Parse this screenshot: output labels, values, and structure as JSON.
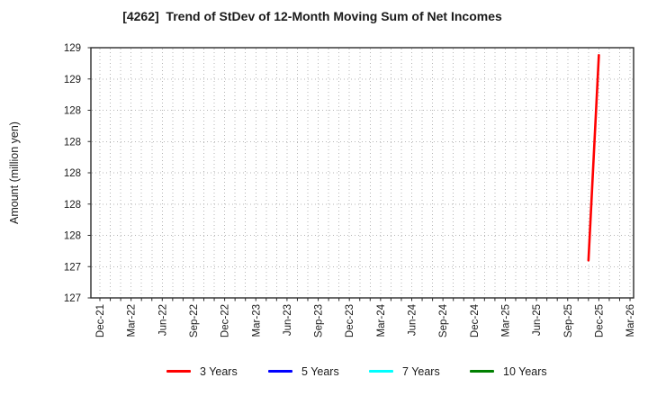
{
  "chart_data": {
    "type": "line",
    "title": "[4262]  Trend of StDev of 12-Month Moving Sum of Net Incomes",
    "ylabel": "Amount (million yen)",
    "xlabel": "",
    "ylim": [
      127.0,
      129.0
    ],
    "grid": true,
    "legend_position": "bottom",
    "y_ticks": {
      "values": [
        129.0,
        128.75,
        128.5,
        128.25,
        128.0,
        127.75,
        127.5,
        127.25,
        127.0
      ],
      "labels": [
        "129",
        "129",
        "128",
        "128",
        "128",
        "128",
        "128",
        "127",
        "127"
      ]
    },
    "x_ticks": {
      "labels": [
        "Dec-21",
        "Mar-22",
        "Jun-22",
        "Sep-22",
        "Dec-22",
        "Mar-23",
        "Jun-23",
        "Sep-23",
        "Dec-23",
        "Mar-24",
        "Jun-24",
        "Sep-24",
        "Dec-24",
        "Mar-25",
        "Jun-25",
        "Sep-25",
        "Dec-25",
        "Mar-26"
      ],
      "month_indices": [
        0,
        3,
        6,
        9,
        12,
        15,
        18,
        21,
        24,
        27,
        30,
        33,
        36,
        39,
        42,
        45,
        48,
        51
      ],
      "total_months": 51
    },
    "series": [
      {
        "name": "3 Years",
        "color": "#ff0000",
        "points": [
          {
            "label": "Nov-25",
            "month_index": 47,
            "value": 127.3
          },
          {
            "label": "Dec-25",
            "month_index": 48,
            "value": 128.94
          }
        ]
      },
      {
        "name": "5 Years",
        "color": "#0000ff",
        "points": []
      },
      {
        "name": "7 Years",
        "color": "#00ffff",
        "points": []
      },
      {
        "name": "10 Years",
        "color": "#008000",
        "points": []
      }
    ]
  },
  "style_colors": {
    "grid": "#b5b5b5",
    "axis_border": "#2b2b2b",
    "text": "#1a1a1a"
  }
}
